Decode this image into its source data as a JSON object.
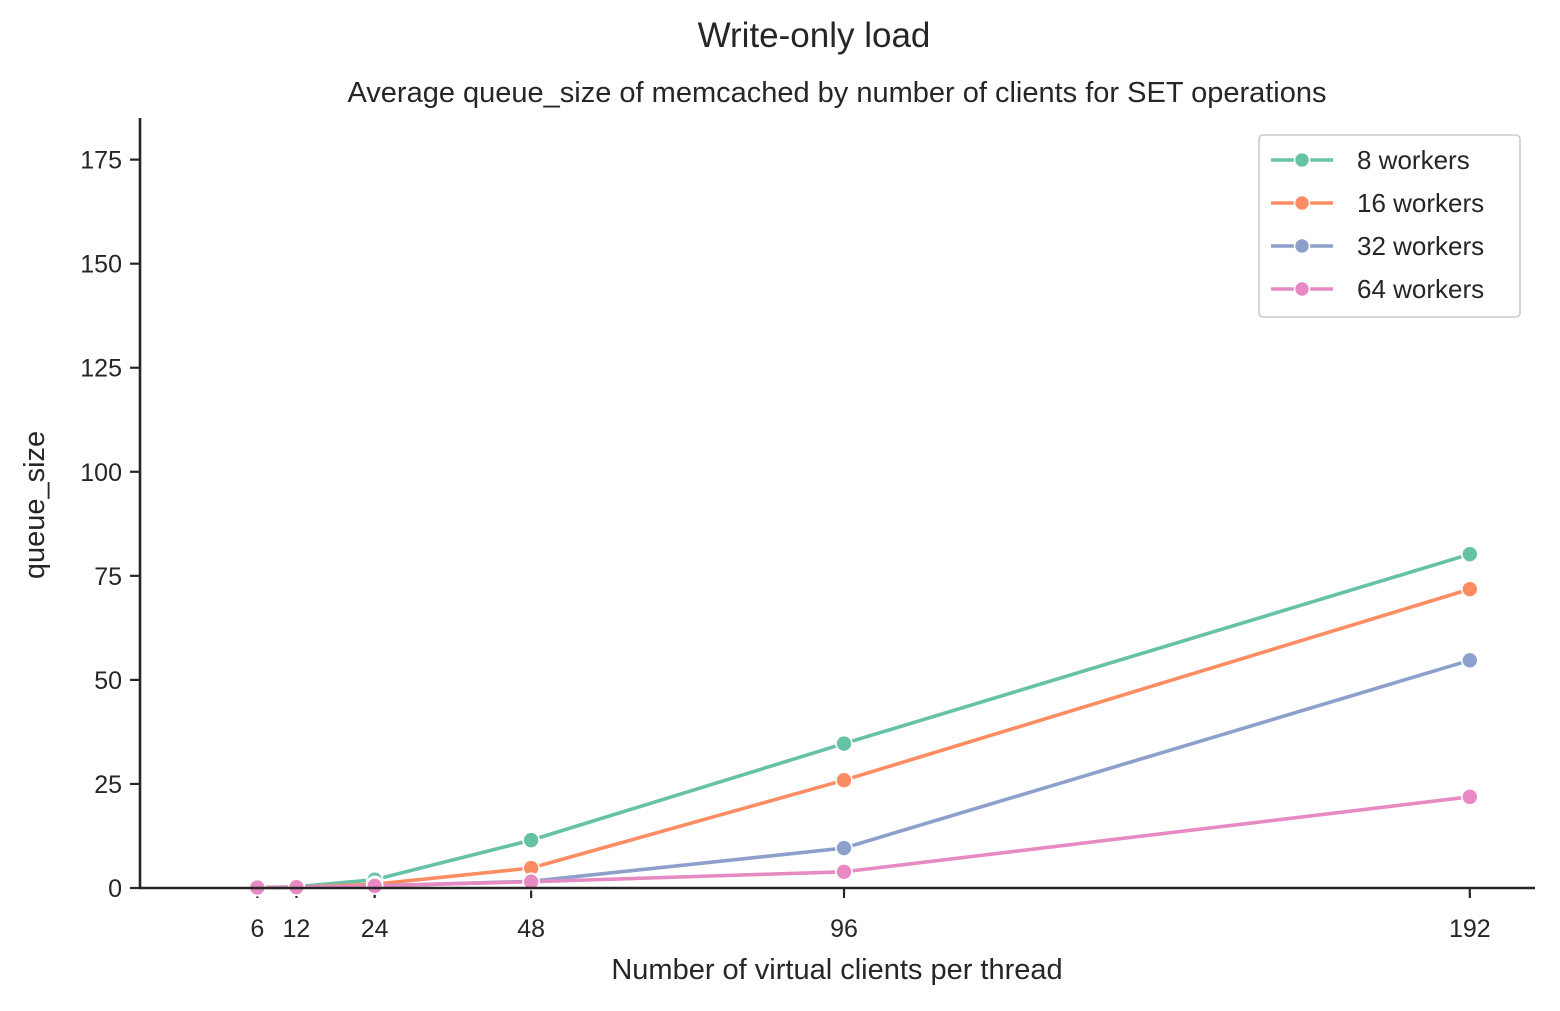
{
  "chart_data": {
    "type": "line",
    "suptitle": "Write-only load",
    "title": "Average queue_size of memcached by number of clients for SET operations",
    "xlabel": "Number of virtual clients per thread",
    "ylabel": "queue_size",
    "x": [
      6,
      12,
      24,
      48,
      96,
      192
    ],
    "xticks": [
      6,
      12,
      24,
      48,
      96,
      192
    ],
    "yticks": [
      0,
      25,
      50,
      75,
      100,
      125,
      150,
      175
    ],
    "xlim": [
      -12,
      202
    ],
    "ylim": [
      0,
      185
    ],
    "grid": false,
    "legend_position": "top-right",
    "series": [
      {
        "name": "8 workers",
        "color": "#66c2a5",
        "values": [
          0.1,
          0.3,
          2.0,
          11.5,
          34.7,
          80.2
        ]
      },
      {
        "name": "16 workers",
        "color": "#fc8d62",
        "values": [
          0.1,
          0.2,
          0.9,
          4.8,
          25.9,
          71.8
        ]
      },
      {
        "name": "32 workers",
        "color": "#8da0cb",
        "values": [
          0.1,
          0.2,
          0.5,
          1.6,
          9.6,
          54.7
        ]
      },
      {
        "name": "64 workers",
        "color": "#e78ac3",
        "values": [
          0.1,
          0.2,
          0.5,
          1.5,
          3.9,
          21.9
        ]
      }
    ]
  }
}
